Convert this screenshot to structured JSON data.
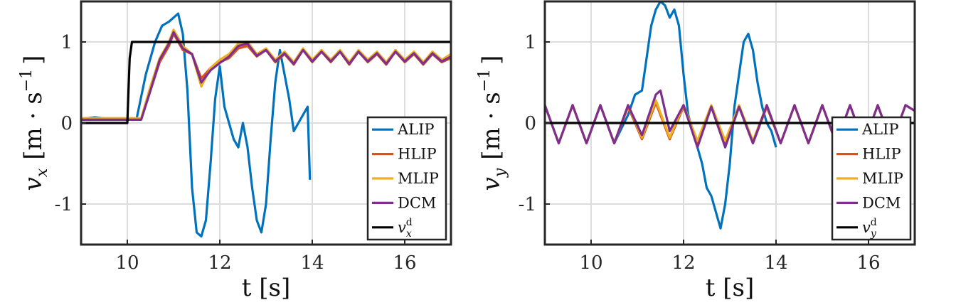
{
  "chart_data": [
    {
      "type": "line",
      "xlabel": "t [s]",
      "ylabel_parts": {
        "var": "v",
        "sub": "x",
        "unit": "[m · s",
        "exp": "−1",
        "close": "]"
      },
      "xlim": [
        9,
        17
      ],
      "ylim": [
        -1.5,
        1.5
      ],
      "xticks": [
        10,
        12,
        14,
        16
      ],
      "yticks": [
        -1,
        0,
        1
      ],
      "ytick_labels": [
        "-1",
        "0",
        "1"
      ],
      "grid": true,
      "legend": {
        "position": "bottom-right",
        "ref_label": {
          "var": "v",
          "sub": "x",
          "sup": "d"
        }
      },
      "series": [
        {
          "name": "ALIP",
          "color": "#0072BD",
          "x": [
            9,
            9.3,
            9.6,
            9.9,
            10.2,
            10.4,
            10.6,
            10.75,
            10.9,
            11.0,
            11.1,
            11.2,
            11.3,
            11.4,
            11.5,
            11.6,
            11.7,
            11.8,
            11.9,
            12.0,
            12.1,
            12.2,
            12.3,
            12.4,
            12.5,
            12.6,
            12.7,
            12.8,
            12.9,
            13.0,
            13.1,
            13.2,
            13.3,
            13.4,
            13.5,
            13.6,
            13.7,
            13.8,
            13.9,
            13.95
          ],
          "y": [
            0.05,
            0.07,
            0.05,
            0.04,
            0.05,
            0.6,
            1.0,
            1.2,
            1.25,
            1.3,
            1.35,
            1.1,
            0.4,
            -0.8,
            -1.35,
            -1.4,
            -1.2,
            -0.5,
            0.3,
            0.7,
            0.2,
            0.0,
            -0.2,
            -0.3,
            0.0,
            -0.3,
            -0.8,
            -1.2,
            -1.35,
            -1.0,
            -0.2,
            0.5,
            0.9,
            0.6,
            0.3,
            -0.1,
            0.0,
            0.1,
            0.2,
            -0.7
          ]
        },
        {
          "name": "HLIP",
          "color": "#D95319",
          "x": [
            9,
            9.5,
            10.0,
            10.3,
            10.5,
            10.7,
            10.9,
            11.0,
            11.1,
            11.2,
            11.4,
            11.6,
            11.8,
            12.0,
            12.2,
            12.4,
            12.6,
            12.8,
            13.0,
            13.2,
            13.4,
            13.6,
            13.8,
            14.0,
            14.2,
            14.4,
            14.6,
            14.8,
            15.0,
            15.2,
            15.4,
            15.6,
            15.8,
            16.0,
            16.2,
            16.4,
            16.6,
            16.8,
            17.0
          ],
          "y": [
            0.05,
            0.05,
            0.05,
            0.05,
            0.4,
            0.75,
            0.95,
            1.1,
            1.0,
            0.9,
            0.85,
            0.55,
            0.68,
            0.75,
            0.8,
            0.92,
            0.95,
            0.82,
            0.9,
            0.75,
            0.85,
            0.72,
            0.9,
            0.75,
            0.88,
            0.75,
            0.88,
            0.72,
            0.88,
            0.75,
            0.85,
            0.72,
            0.88,
            0.75,
            0.85,
            0.72,
            0.85,
            0.75,
            0.8
          ]
        },
        {
          "name": "MLIP",
          "color": "#EDB120",
          "x": [
            9,
            9.5,
            10.0,
            10.3,
            10.5,
            10.7,
            10.9,
            11.0,
            11.1,
            11.2,
            11.4,
            11.6,
            11.8,
            12.0,
            12.2,
            12.4,
            12.6,
            12.8,
            13.0,
            13.2,
            13.4,
            13.6,
            13.8,
            14.0,
            14.2,
            14.4,
            14.6,
            14.8,
            15.0,
            15.2,
            15.4,
            15.6,
            15.8,
            16.0,
            16.2,
            16.4,
            16.6,
            16.8,
            17.0
          ],
          "y": [
            0.06,
            0.06,
            0.06,
            0.06,
            0.45,
            0.8,
            1.0,
            1.15,
            1.05,
            0.95,
            0.85,
            0.45,
            0.68,
            0.78,
            0.85,
            0.98,
            1.0,
            0.85,
            0.92,
            0.78,
            0.88,
            0.75,
            0.92,
            0.78,
            0.9,
            0.78,
            0.9,
            0.75,
            0.9,
            0.78,
            0.88,
            0.75,
            0.9,
            0.78,
            0.88,
            0.75,
            0.88,
            0.78,
            0.85
          ]
        },
        {
          "name": "DCM",
          "color": "#7E2F8E",
          "x": [
            9,
            9.5,
            10.0,
            10.3,
            10.5,
            10.7,
            10.9,
            11.0,
            11.1,
            11.2,
            11.4,
            11.6,
            11.8,
            12.0,
            12.2,
            12.4,
            12.6,
            12.8,
            13.0,
            13.2,
            13.4,
            13.6,
            13.8,
            14.0,
            14.2,
            14.4,
            14.6,
            14.8,
            15.0,
            15.2,
            15.4,
            15.6,
            15.8,
            16.0,
            16.2,
            16.4,
            16.6,
            16.8,
            17.0
          ],
          "y": [
            0.04,
            0.04,
            0.04,
            0.04,
            0.4,
            0.78,
            0.98,
            1.12,
            1.02,
            0.92,
            0.85,
            0.5,
            0.65,
            0.74,
            0.82,
            0.95,
            0.98,
            0.83,
            0.9,
            0.76,
            0.86,
            0.73,
            0.9,
            0.76,
            0.88,
            0.76,
            0.88,
            0.73,
            0.88,
            0.76,
            0.86,
            0.73,
            0.88,
            0.76,
            0.86,
            0.73,
            0.86,
            0.76,
            0.82
          ]
        },
        {
          "name": "v_x^d",
          "color": "#000000",
          "x": [
            9,
            10.0,
            10.05,
            10.1,
            17
          ],
          "y": [
            0,
            0,
            0.8,
            1.0,
            1.0
          ]
        }
      ]
    },
    {
      "type": "line",
      "xlabel": "t [s]",
      "ylabel_parts": {
        "var": "v",
        "sub": "y",
        "unit": "[m · s",
        "exp": "−1",
        "close": "]"
      },
      "xlim": [
        9,
        17
      ],
      "ylim": [
        -1.5,
        1.5
      ],
      "xticks": [
        10,
        12,
        14,
        16
      ],
      "yticks": [
        -1,
        0,
        1
      ],
      "ytick_labels": [
        "-1",
        "0",
        "1"
      ],
      "grid": true,
      "legend": {
        "position": "bottom-right",
        "ref_label": {
          "var": "v",
          "sub": "y",
          "sup": "d"
        }
      },
      "series": [
        {
          "name": "ALIP",
          "color": "#0072BD",
          "x": [
            9,
            9.3,
            9.6,
            9.9,
            10.2,
            10.5,
            10.8,
            10.95,
            11.1,
            11.2,
            11.3,
            11.4,
            11.5,
            11.6,
            11.7,
            11.8,
            11.9,
            12.0,
            12.1,
            12.2,
            12.3,
            12.4,
            12.5,
            12.6,
            12.7,
            12.8,
            12.9,
            13.0,
            13.1,
            13.2,
            13.3,
            13.4,
            13.5,
            13.6,
            13.7,
            13.8,
            13.9,
            14.0
          ],
          "y": [
            0.22,
            -0.25,
            0.22,
            -0.25,
            0.22,
            -0.25,
            0.1,
            0.35,
            0.4,
            0.8,
            1.2,
            1.4,
            1.5,
            1.45,
            1.3,
            1.4,
            1.2,
            0.6,
            0.1,
            -0.1,
            -0.3,
            -0.5,
            -0.8,
            -0.9,
            -1.1,
            -1.3,
            -1.0,
            -0.5,
            0.2,
            0.6,
            1.0,
            1.1,
            0.9,
            0.5,
            0.2,
            0.0,
            -0.1,
            -0.3
          ]
        },
        {
          "name": "HLIP",
          "color": "#D95319",
          "x": [
            9,
            9.3,
            9.6,
            9.9,
            10.2,
            10.5,
            10.8,
            11.1,
            11.4,
            11.7,
            12.0,
            12.3,
            12.6,
            12.9,
            13.2,
            13.5,
            13.8,
            14.1,
            14.4,
            14.7,
            15.0,
            15.3,
            15.6,
            15.9,
            16.2,
            16.5,
            16.8,
            17.0
          ],
          "y": [
            0.22,
            -0.25,
            0.22,
            -0.25,
            0.22,
            -0.25,
            0.2,
            -0.2,
            0.25,
            -0.2,
            0.2,
            -0.25,
            0.2,
            -0.25,
            0.2,
            -0.25,
            0.2,
            -0.25,
            0.22,
            -0.25,
            0.22,
            -0.25,
            0.22,
            -0.25,
            0.22,
            -0.25,
            0.22,
            0.15
          ]
        },
        {
          "name": "MLIP",
          "color": "#EDB120",
          "x": [
            9,
            9.3,
            9.6,
            9.9,
            10.2,
            10.5,
            10.8,
            11.1,
            11.4,
            11.7,
            12.0,
            12.3,
            12.6,
            12.9,
            13.2,
            13.5,
            13.8,
            14.1,
            14.4,
            14.7,
            15.0,
            15.3,
            15.6,
            15.9,
            16.2,
            16.5,
            16.8,
            17.0
          ],
          "y": [
            0.22,
            -0.25,
            0.22,
            -0.25,
            0.22,
            -0.25,
            0.22,
            -0.18,
            0.28,
            -0.18,
            0.22,
            -0.22,
            0.22,
            -0.22,
            0.22,
            -0.22,
            0.22,
            -0.25,
            0.22,
            -0.25,
            0.22,
            -0.25,
            0.22,
            -0.25,
            0.22,
            -0.25,
            0.22,
            0.15
          ]
        },
        {
          "name": "DCM",
          "color": "#7E2F8E",
          "x": [
            9,
            9.3,
            9.6,
            9.9,
            10.2,
            10.5,
            10.8,
            11.1,
            11.4,
            11.5,
            11.7,
            12.0,
            12.3,
            12.6,
            12.9,
            13.2,
            13.5,
            13.8,
            14.1,
            14.4,
            14.7,
            15.0,
            15.3,
            15.6,
            15.9,
            16.2,
            16.5,
            16.8,
            17.0
          ],
          "y": [
            0.22,
            -0.25,
            0.22,
            -0.25,
            0.22,
            -0.25,
            0.22,
            -0.15,
            0.35,
            0.4,
            -0.1,
            0.22,
            -0.3,
            0.2,
            -0.3,
            0.2,
            -0.25,
            0.22,
            -0.25,
            0.22,
            -0.25,
            0.22,
            -0.25,
            0.22,
            -0.25,
            0.22,
            -0.25,
            0.22,
            0.15
          ]
        },
        {
          "name": "v_y^d",
          "color": "#000000",
          "x": [
            9,
            17
          ],
          "y": [
            0,
            0
          ]
        }
      ]
    }
  ]
}
